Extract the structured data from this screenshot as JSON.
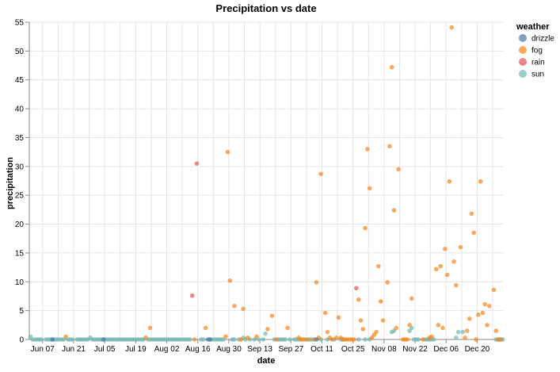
{
  "chart_data": {
    "type": "scatter",
    "title": "Precipitation vs date",
    "xlabel": "date",
    "ylabel": "precipitation",
    "x_ticks": [
      "Jun 07",
      "Jun 21",
      "Jul 05",
      "Jul 19",
      "Aug 02",
      "Aug 16",
      "Aug 30",
      "Sep 13",
      "Sep 27",
      "Oct 11",
      "Oct 25",
      "Nov 08",
      "Nov 22",
      "Dec 06",
      "Dec 20"
    ],
    "x_range": [
      "2015-06-01",
      "2015-12-31"
    ],
    "y_ticks": [
      0,
      5,
      10,
      15,
      20,
      25,
      30,
      35,
      40,
      45,
      50,
      55
    ],
    "ylim": [
      0,
      55
    ],
    "grid": true,
    "legend": {
      "title": "weather",
      "position": "top-right",
      "entries": [
        {
          "name": "drizzle",
          "color": "#4c78a8"
        },
        {
          "name": "fog",
          "color": "#f58518"
        },
        {
          "name": "rain",
          "color": "#e45756"
        },
        {
          "name": "sun",
          "color": "#72b7b2"
        }
      ]
    },
    "series": [
      {
        "name": "sun",
        "color": "#72b7b2",
        "points": [
          [
            "2015-06-01",
            0.5
          ],
          [
            "2015-06-02",
            0
          ],
          [
            "2015-06-03",
            0
          ],
          [
            "2015-06-04",
            0
          ],
          [
            "2015-06-05",
            0
          ],
          [
            "2015-06-06",
            0
          ],
          [
            "2015-06-08",
            0
          ],
          [
            "2015-06-09",
            0
          ],
          [
            "2015-06-10",
            0
          ],
          [
            "2015-06-11",
            0
          ],
          [
            "2015-06-12",
            0
          ],
          [
            "2015-06-13",
            0
          ],
          [
            "2015-06-14",
            0
          ],
          [
            "2015-06-15",
            0
          ],
          [
            "2015-06-16",
            0
          ],
          [
            "2015-06-18",
            0
          ],
          [
            "2015-06-19",
            0
          ],
          [
            "2015-06-20",
            0
          ],
          [
            "2015-06-22",
            0
          ],
          [
            "2015-06-23",
            0
          ],
          [
            "2015-06-24",
            0
          ],
          [
            "2015-06-25",
            0
          ],
          [
            "2015-06-26",
            0
          ],
          [
            "2015-06-27",
            0
          ],
          [
            "2015-06-28",
            0.3
          ],
          [
            "2015-06-29",
            0
          ],
          [
            "2015-06-30",
            0
          ],
          [
            "2015-07-01",
            0
          ],
          [
            "2015-07-02",
            0
          ],
          [
            "2015-07-03",
            0
          ],
          [
            "2015-07-04",
            0
          ],
          [
            "2015-07-05",
            0
          ],
          [
            "2015-07-06",
            0
          ],
          [
            "2015-07-07",
            0
          ],
          [
            "2015-07-08",
            0
          ],
          [
            "2015-07-09",
            0
          ],
          [
            "2015-07-10",
            0
          ],
          [
            "2015-07-11",
            0
          ],
          [
            "2015-07-12",
            0
          ],
          [
            "2015-07-13",
            0
          ],
          [
            "2015-07-14",
            0
          ],
          [
            "2015-07-15",
            0
          ],
          [
            "2015-07-16",
            0
          ],
          [
            "2015-07-17",
            0
          ],
          [
            "2015-07-18",
            0
          ],
          [
            "2015-07-19",
            0
          ],
          [
            "2015-07-20",
            0
          ],
          [
            "2015-07-21",
            0
          ],
          [
            "2015-07-22",
            0
          ],
          [
            "2015-07-24",
            0
          ],
          [
            "2015-07-25",
            0
          ],
          [
            "2015-07-26",
            0
          ],
          [
            "2015-07-27",
            0
          ],
          [
            "2015-07-28",
            0
          ],
          [
            "2015-07-29",
            0
          ],
          [
            "2015-07-30",
            0
          ],
          [
            "2015-07-31",
            0
          ],
          [
            "2015-08-01",
            0
          ],
          [
            "2015-08-02",
            0
          ],
          [
            "2015-08-03",
            0
          ],
          [
            "2015-08-04",
            0
          ],
          [
            "2015-08-05",
            0
          ],
          [
            "2015-08-06",
            0
          ],
          [
            "2015-08-07",
            0
          ],
          [
            "2015-08-08",
            0
          ],
          [
            "2015-08-09",
            0
          ],
          [
            "2015-08-10",
            0
          ],
          [
            "2015-08-11",
            0
          ],
          [
            "2015-08-12",
            0
          ],
          [
            "2015-08-17",
            0
          ],
          [
            "2015-08-18",
            0
          ],
          [
            "2015-08-21",
            0
          ],
          [
            "2015-08-22",
            0
          ],
          [
            "2015-08-23",
            0
          ],
          [
            "2015-08-24",
            0
          ],
          [
            "2015-08-25",
            0
          ],
          [
            "2015-08-26",
            0
          ],
          [
            "2015-08-27",
            0
          ],
          [
            "2015-08-31",
            0
          ],
          [
            "2015-09-01",
            0
          ],
          [
            "2015-09-03",
            0
          ],
          [
            "2015-09-05",
            0.3
          ],
          [
            "2015-09-06",
            0
          ],
          [
            "2015-09-08",
            0
          ],
          [
            "2015-09-10",
            0
          ],
          [
            "2015-09-12",
            0
          ],
          [
            "2015-09-14",
            0
          ],
          [
            "2015-09-15",
            1.0
          ],
          [
            "2015-09-19",
            0
          ],
          [
            "2015-09-21",
            0
          ],
          [
            "2015-09-22",
            0
          ],
          [
            "2015-09-23",
            0
          ],
          [
            "2015-09-24",
            0
          ],
          [
            "2015-09-26",
            0
          ],
          [
            "2015-09-28",
            0
          ],
          [
            "2015-09-29",
            0
          ],
          [
            "2015-09-30",
            0
          ],
          [
            "2015-10-03",
            0
          ],
          [
            "2015-10-05",
            0
          ],
          [
            "2015-10-06",
            0
          ],
          [
            "2015-10-10",
            0
          ],
          [
            "2015-10-13",
            0
          ],
          [
            "2015-10-16",
            0
          ],
          [
            "2015-10-19",
            0
          ],
          [
            "2015-10-20",
            0
          ],
          [
            "2015-10-27",
            0
          ],
          [
            "2015-10-30",
            0
          ],
          [
            "2015-11-01",
            0
          ],
          [
            "2015-11-11",
            1.3
          ],
          [
            "2015-11-12",
            1.5
          ],
          [
            "2015-11-19",
            1.5
          ],
          [
            "2015-11-20",
            2.0
          ],
          [
            "2015-11-21",
            0
          ],
          [
            "2015-11-22",
            0
          ],
          [
            "2015-11-23",
            0
          ],
          [
            "2015-11-26",
            0
          ],
          [
            "2015-11-27",
            0
          ],
          [
            "2015-11-28",
            0
          ],
          [
            "2015-11-29",
            0
          ],
          [
            "2015-11-30",
            0
          ],
          [
            "2015-12-10",
            0.3
          ],
          [
            "2015-12-11",
            1.3
          ],
          [
            "2015-12-13",
            1.3
          ],
          [
            "2015-12-28",
            0
          ],
          [
            "2015-12-29",
            0
          ],
          [
            "2015-12-30",
            0
          ],
          [
            "2015-12-31",
            0
          ]
        ]
      },
      {
        "name": "fog",
        "color": "#f58518",
        "points": [
          [
            "2015-06-17",
            0.5
          ],
          [
            "2015-07-23",
            0.3
          ],
          [
            "2015-07-25",
            2.0
          ],
          [
            "2015-08-14",
            0
          ],
          [
            "2015-08-19",
            2.0
          ],
          [
            "2015-08-28",
            0.5
          ],
          [
            "2015-08-29",
            32.5
          ],
          [
            "2015-08-30",
            10.2
          ],
          [
            "2015-09-01",
            5.8
          ],
          [
            "2015-09-04",
            0
          ],
          [
            "2015-09-05",
            5.3
          ],
          [
            "2015-09-07",
            0.3
          ],
          [
            "2015-09-11",
            0.5
          ],
          [
            "2015-09-16",
            1.8
          ],
          [
            "2015-09-18",
            4.1
          ],
          [
            "2015-09-20",
            0
          ],
          [
            "2015-09-25",
            2.0
          ],
          [
            "2015-09-30",
            0.3
          ],
          [
            "2015-10-01",
            0
          ],
          [
            "2015-10-02",
            0
          ],
          [
            "2015-10-04",
            0
          ],
          [
            "2015-10-07",
            0
          ],
          [
            "2015-10-08",
            9.9
          ],
          [
            "2015-10-09",
            0.3
          ],
          [
            "2015-10-10",
            28.7
          ],
          [
            "2015-10-12",
            4.6
          ],
          [
            "2015-10-13",
            1.3
          ],
          [
            "2015-10-14",
            0.3
          ],
          [
            "2015-10-15",
            0
          ],
          [
            "2015-10-17",
            0.3
          ],
          [
            "2015-10-18",
            3.8
          ],
          [
            "2015-10-19",
            0.3
          ],
          [
            "2015-10-20",
            0
          ],
          [
            "2015-10-21",
            0
          ],
          [
            "2015-10-22",
            0
          ],
          [
            "2015-10-23",
            0
          ],
          [
            "2015-10-24",
            0
          ],
          [
            "2015-10-25",
            0
          ],
          [
            "2015-10-27",
            6.9
          ],
          [
            "2015-10-28",
            3.3
          ],
          [
            "2015-10-29",
            1.8
          ],
          [
            "2015-10-30",
            19.3
          ],
          [
            "2015-10-31",
            33.0
          ],
          [
            "2015-11-01",
            26.2
          ],
          [
            "2015-11-02",
            0.3
          ],
          [
            "2015-11-03",
            0.8
          ],
          [
            "2015-11-04",
            1.3
          ],
          [
            "2015-11-05",
            12.7
          ],
          [
            "2015-11-06",
            6.6
          ],
          [
            "2015-11-07",
            3.3
          ],
          [
            "2015-11-09",
            9.9
          ],
          [
            "2015-11-10",
            33.5
          ],
          [
            "2015-11-11",
            47.2
          ],
          [
            "2015-11-12",
            22.4
          ],
          [
            "2015-11-13",
            2.0
          ],
          [
            "2015-11-14",
            29.5
          ],
          [
            "2015-11-16",
            0
          ],
          [
            "2015-11-17",
            0
          ],
          [
            "2015-11-18",
            0
          ],
          [
            "2015-11-19",
            2.5
          ],
          [
            "2015-11-20",
            7.1
          ],
          [
            "2015-11-25",
            0
          ],
          [
            "2015-11-28",
            0.3
          ],
          [
            "2015-11-29",
            0.5
          ],
          [
            "2015-12-01",
            12.2
          ],
          [
            "2015-12-02",
            2.5
          ],
          [
            "2015-12-03",
            12.7
          ],
          [
            "2015-12-04",
            2.0
          ],
          [
            "2015-12-05",
            15.7
          ],
          [
            "2015-12-06",
            11.2
          ],
          [
            "2015-12-07",
            27.4
          ],
          [
            "2015-12-08",
            54.1
          ],
          [
            "2015-12-09",
            13.5
          ],
          [
            "2015-12-10",
            9.4
          ],
          [
            "2015-12-12",
            16.0
          ],
          [
            "2015-12-14",
            0.3
          ],
          [
            "2015-12-15",
            1.5
          ],
          [
            "2015-12-16",
            3.6
          ],
          [
            "2015-12-17",
            21.8
          ],
          [
            "2015-12-18",
            18.5
          ],
          [
            "2015-12-19",
            0
          ],
          [
            "2015-12-20",
            4.3
          ],
          [
            "2015-12-21",
            27.4
          ],
          [
            "2015-12-22",
            4.6
          ],
          [
            "2015-12-23",
            6.1
          ],
          [
            "2015-12-24",
            2.5
          ],
          [
            "2015-12-25",
            5.8
          ],
          [
            "2015-12-27",
            8.6
          ],
          [
            "2015-12-28",
            1.5
          ],
          [
            "2015-12-29",
            0
          ],
          [
            "2015-12-30",
            0
          ]
        ]
      },
      {
        "name": "rain",
        "color": "#e45756",
        "points": [
          [
            "2015-08-13",
            7.6
          ],
          [
            "2015-08-15",
            30.5
          ],
          [
            "2015-10-26",
            8.9
          ]
        ]
      },
      {
        "name": "drizzle",
        "color": "#4c78a8",
        "points": [
          [
            "2015-06-11",
            0
          ],
          [
            "2015-07-04",
            0
          ],
          [
            "2015-08-20",
            0
          ],
          [
            "2015-08-21",
            0
          ],
          [
            "2015-10-08",
            0
          ]
        ]
      }
    ]
  }
}
